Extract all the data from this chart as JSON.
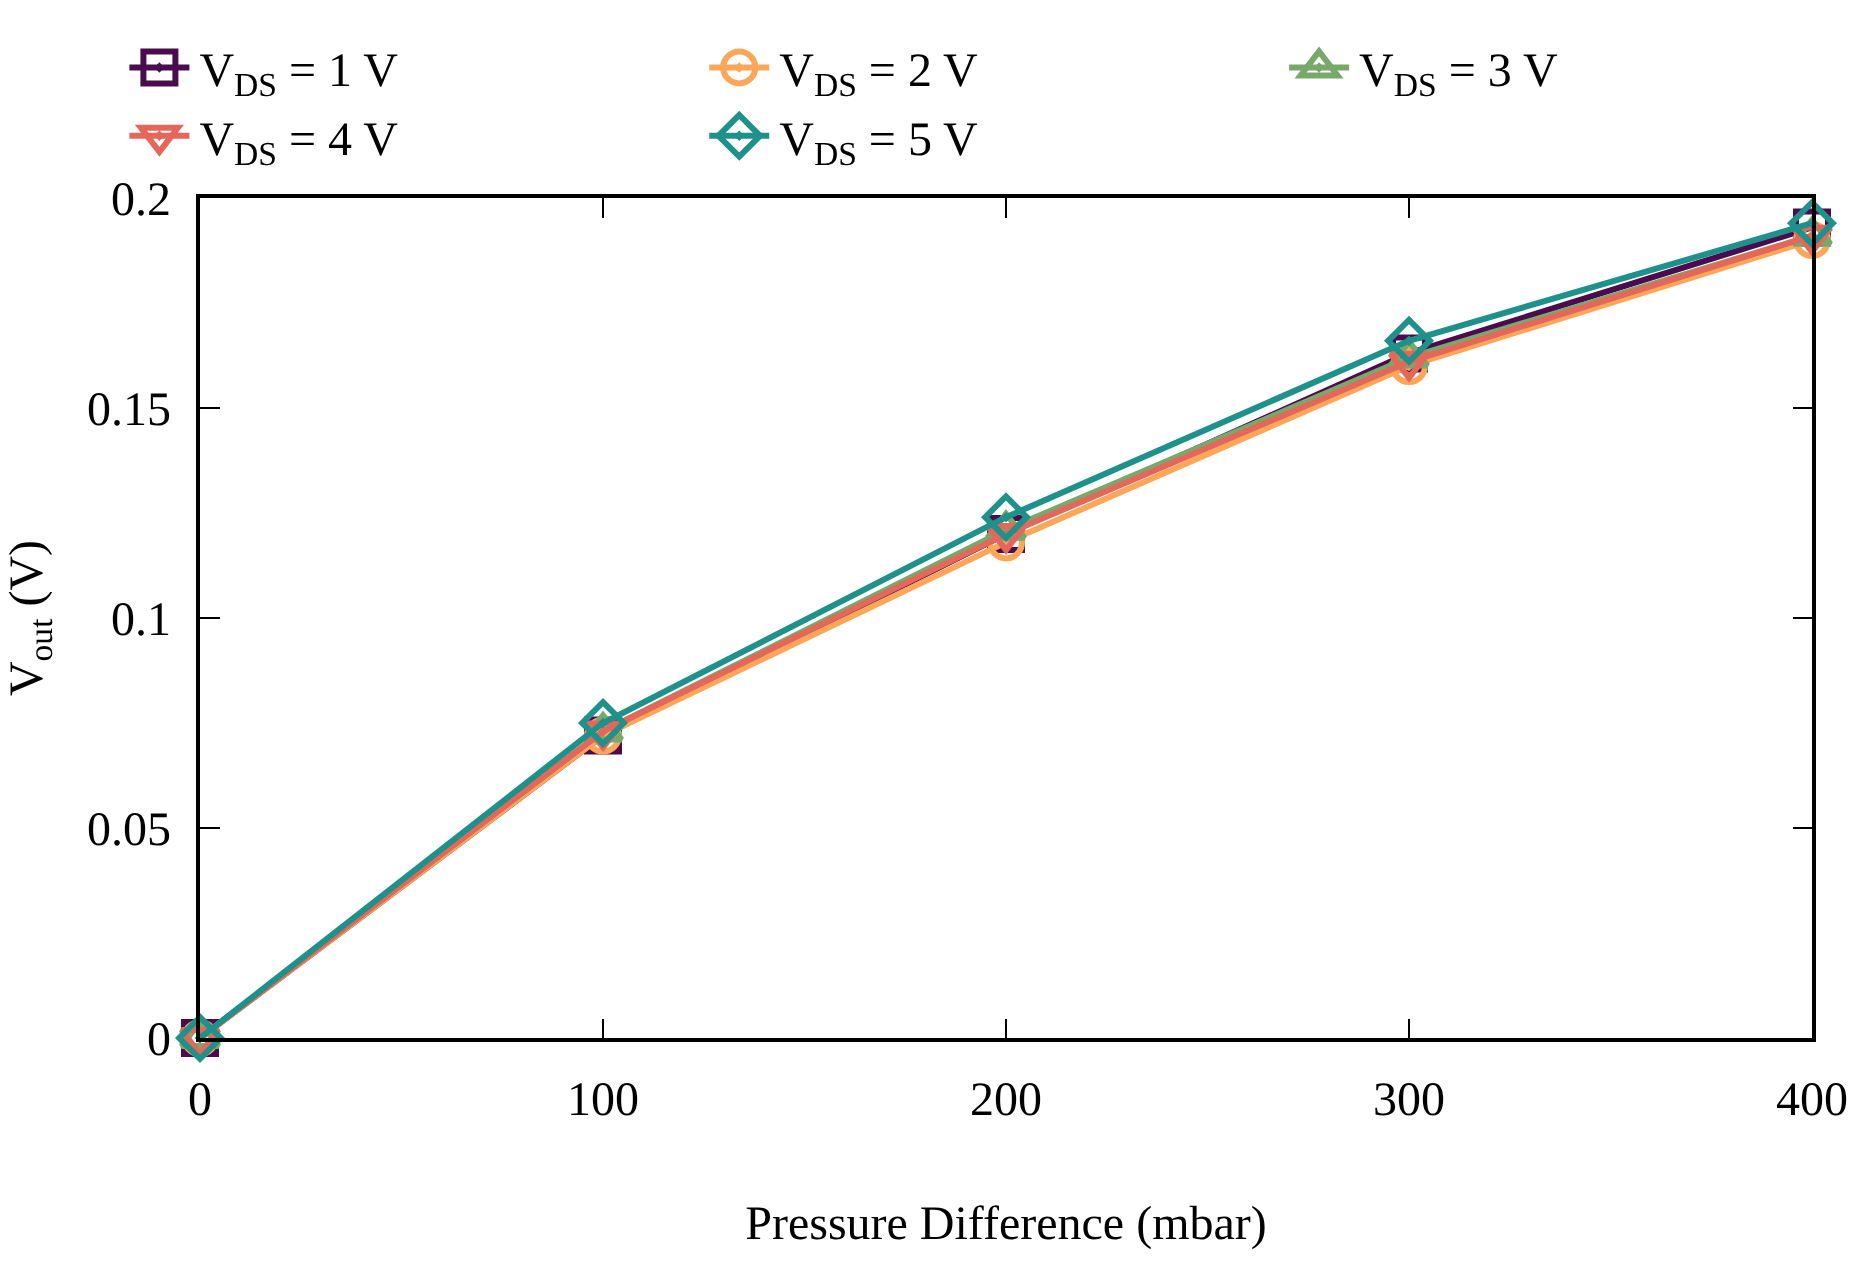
{
  "chart_data": {
    "type": "line",
    "xlabel": "Pressure Difference (mbar)",
    "ylabel": "V$_{out}$ (V)",
    "x": [
      0,
      100,
      200,
      300,
      400
    ],
    "series": [
      {
        "name": "V$_{DS}$ = 1 V",
        "color": "#4a0c4f",
        "marker": "square",
        "values": [
          0,
          0.072,
          0.12,
          0.163,
          0.193
        ]
      },
      {
        "name": "V$_{DS}$ = 2 V",
        "color": "#fba75a",
        "marker": "circle",
        "values": [
          0,
          0.072,
          0.118,
          0.16,
          0.19
        ]
      },
      {
        "name": "V$_{DS}$ = 3 V",
        "color": "#78a96b",
        "marker": "triangle",
        "values": [
          0,
          0.073,
          0.121,
          0.162,
          0.191
        ]
      },
      {
        "name": "V$_{DS}$ = 4 V",
        "color": "#e5675a",
        "marker": "triangle-down",
        "values": [
          0,
          0.073,
          0.12,
          0.161,
          0.191
        ]
      },
      {
        "name": "V$_{DS}$ = 5 V",
        "color": "#1e918a",
        "marker": "diamond",
        "values": [
          0,
          0.075,
          0.124,
          0.166,
          0.194
        ]
      }
    ],
    "xlim": [
      0,
      400
    ],
    "xticks": [
      0,
      100,
      200,
      300,
      400
    ],
    "ylim": [
      0,
      0.2
    ],
    "yticks": [
      0,
      0.05,
      0.1,
      0.15,
      0.2
    ],
    "legend": "top",
    "line_style": "solid"
  }
}
